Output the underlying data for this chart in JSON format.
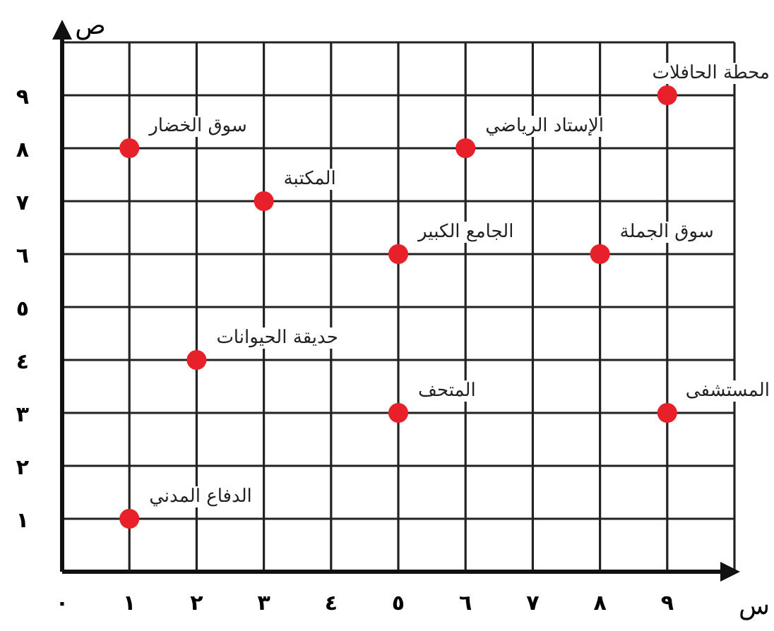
{
  "chart_data": {
    "type": "scatter",
    "xlabel": "س",
    "ylabel": "ص",
    "x": [
      1,
      3,
      6,
      9,
      5,
      8,
      2,
      5,
      9,
      1
    ],
    "series": [
      {
        "color": "#e8202a",
        "values": [
          8,
          7,
          8,
          9,
          6,
          6,
          4,
          3,
          3,
          1
        ]
      }
    ],
    "marker": "circle",
    "grid": true,
    "xlim": [
      0,
      10
    ],
    "ylim": [
      0,
      10
    ],
    "xticks": [
      {
        "value": 0,
        "label": "٠"
      },
      {
        "value": 1,
        "label": "١"
      },
      {
        "value": 2,
        "label": "٢"
      },
      {
        "value": 3,
        "label": "٣"
      },
      {
        "value": 4,
        "label": "٤"
      },
      {
        "value": 5,
        "label": "٥"
      },
      {
        "value": 6,
        "label": "٦"
      },
      {
        "value": 7,
        "label": "٧"
      },
      {
        "value": 8,
        "label": "٨"
      },
      {
        "value": 9,
        "label": "٩"
      },
      {
        "value": 10,
        "label": null
      }
    ],
    "yticks": [
      {
        "value": 1,
        "label": "١"
      },
      {
        "value": 2,
        "label": "٢"
      },
      {
        "value": 3,
        "label": "٣"
      },
      {
        "value": 4,
        "label": "٤"
      },
      {
        "value": 5,
        "label": "٥"
      },
      {
        "value": 6,
        "label": "٦"
      },
      {
        "value": 7,
        "label": "٧"
      },
      {
        "value": 8,
        "label": "٨"
      },
      {
        "value": 9,
        "label": "٩"
      },
      {
        "value": 10,
        "label": null
      }
    ],
    "annotations": [
      {
        "text": "سوق الخضار",
        "x": 1,
        "y": 8
      },
      {
        "text": "المكتبة",
        "x": 3,
        "y": 7
      },
      {
        "text": "الإستاد الرياضي",
        "x": 6,
        "y": 8
      },
      {
        "text": "محطة الحافلات",
        "x": 9,
        "y": 9
      },
      {
        "text": "الجامع الكبير",
        "x": 5,
        "y": 6
      },
      {
        "text": "سوق الجملة",
        "x": 8,
        "y": 6
      },
      {
        "text": "حديقة الحيوانات",
        "x": 2,
        "y": 4
      },
      {
        "text": "المتحف",
        "x": 5,
        "y": 3
      },
      {
        "text": "المستشفى",
        "x": 9,
        "y": 3
      },
      {
        "text": "الدفاع المدني",
        "x": 1,
        "y": 1
      }
    ]
  }
}
